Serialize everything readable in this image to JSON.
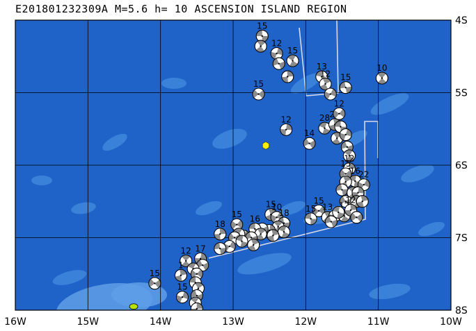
{
  "title": "E201801232309A M=5.6 h= 10 ASCENSION ISLAND REGION",
  "map": {
    "lon_range": [
      -16,
      -10
    ],
    "lat_range": [
      -8,
      -4
    ],
    "x_ticks": [
      "16W",
      "15W",
      "14W",
      "13W",
      "12W",
      "11W",
      "10W"
    ],
    "y_ticks": [
      "4S",
      "5S",
      "6S",
      "7S",
      "8S"
    ],
    "colors": {
      "ocean_deep": "#1f63c8",
      "ocean_shallow": "#3f86dc",
      "ridge": "#5f9de6",
      "grid": "#000000",
      "boundary": "#d8d8e8",
      "event_star": "#ffee00",
      "island": "#b8e000"
    },
    "event": {
      "lon": -12.55,
      "lat": -5.73
    },
    "island": {
      "lon": -14.37,
      "lat": -7.95
    },
    "mechanisms": [
      {
        "lon": -12.6,
        "lat": -4.22,
        "depth": "15"
      },
      {
        "lon": -12.62,
        "lat": -4.36,
        "depth": ""
      },
      {
        "lon": -12.4,
        "lat": -4.46,
        "depth": "12"
      },
      {
        "lon": -12.37,
        "lat": -4.6,
        "depth": ""
      },
      {
        "lon": -12.18,
        "lat": -4.56,
        "depth": "15"
      },
      {
        "lon": -12.25,
        "lat": -4.78,
        "depth": ""
      },
      {
        "lon": -12.65,
        "lat": -5.02,
        "depth": "15"
      },
      {
        "lon": -11.78,
        "lat": -4.78,
        "depth": "13"
      },
      {
        "lon": -11.73,
        "lat": -4.88,
        "depth": "12"
      },
      {
        "lon": -11.66,
        "lat": -5.02,
        "depth": ""
      },
      {
        "lon": -11.45,
        "lat": -4.93,
        "depth": "15"
      },
      {
        "lon": -10.95,
        "lat": -4.8,
        "depth": "10"
      },
      {
        "lon": -12.27,
        "lat": -5.51,
        "depth": "12"
      },
      {
        "lon": -11.95,
        "lat": -5.7,
        "depth": "14"
      },
      {
        "lon": -11.74,
        "lat": -5.49,
        "depth": "28"
      },
      {
        "lon": -11.6,
        "lat": -5.44,
        "depth": "21"
      },
      {
        "lon": -11.54,
        "lat": -5.29,
        "depth": "12"
      },
      {
        "lon": -11.52,
        "lat": -5.47,
        "depth": ""
      },
      {
        "lon": -11.57,
        "lat": -5.63,
        "depth": ""
      },
      {
        "lon": -11.45,
        "lat": -5.58,
        "depth": ""
      },
      {
        "lon": -11.43,
        "lat": -5.75,
        "depth": ""
      },
      {
        "lon": -11.4,
        "lat": -5.87,
        "depth": ""
      },
      {
        "lon": -11.4,
        "lat": -6.05,
        "depth": "12"
      },
      {
        "lon": -11.45,
        "lat": -6.12,
        "depth": "15"
      },
      {
        "lon": -11.32,
        "lat": -6.22,
        "depth": "16"
      },
      {
        "lon": -11.45,
        "lat": -6.23,
        "depth": ""
      },
      {
        "lon": -11.2,
        "lat": -6.27,
        "depth": "22"
      },
      {
        "lon": -11.5,
        "lat": -6.34,
        "depth": ""
      },
      {
        "lon": -11.35,
        "lat": -6.38,
        "depth": ""
      },
      {
        "lon": -11.28,
        "lat": -6.38,
        "depth": ""
      },
      {
        "lon": -11.45,
        "lat": -6.5,
        "depth": ""
      },
      {
        "lon": -11.3,
        "lat": -6.5,
        "depth": ""
      },
      {
        "lon": -11.22,
        "lat": -6.5,
        "depth": ""
      },
      {
        "lon": -11.82,
        "lat": -6.63,
        "depth": "15"
      },
      {
        "lon": -11.93,
        "lat": -6.74,
        "depth": "15"
      },
      {
        "lon": -11.7,
        "lat": -6.72,
        "depth": "13"
      },
      {
        "lon": -11.6,
        "lat": -6.7,
        "depth": ""
      },
      {
        "lon": -11.65,
        "lat": -6.78,
        "depth": ""
      },
      {
        "lon": -11.47,
        "lat": -6.7,
        "depth": "12"
      },
      {
        "lon": -11.38,
        "lat": -6.62,
        "depth": "12"
      },
      {
        "lon": -11.3,
        "lat": -6.72,
        "depth": ""
      },
      {
        "lon": -11.55,
        "lat": -6.65,
        "depth": ""
      },
      {
        "lon": -12.48,
        "lat": -6.68,
        "depth": "15"
      },
      {
        "lon": -12.4,
        "lat": -6.72,
        "depth": "10"
      },
      {
        "lon": -12.3,
        "lat": -6.8,
        "depth": "18"
      },
      {
        "lon": -12.38,
        "lat": -6.85,
        "depth": ""
      },
      {
        "lon": -12.5,
        "lat": -6.9,
        "depth": ""
      },
      {
        "lon": -12.6,
        "lat": -6.88,
        "depth": ""
      },
      {
        "lon": -12.3,
        "lat": -6.92,
        "depth": ""
      },
      {
        "lon": -12.45,
        "lat": -6.97,
        "depth": ""
      },
      {
        "lon": -12.95,
        "lat": -6.82,
        "depth": "15"
      },
      {
        "lon": -12.7,
        "lat": -6.88,
        "depth": "16"
      },
      {
        "lon": -12.62,
        "lat": -6.95,
        "depth": ""
      },
      {
        "lon": -12.85,
        "lat": -6.98,
        "depth": ""
      },
      {
        "lon": -12.75,
        "lat": -7.0,
        "depth": ""
      },
      {
        "lon": -12.92,
        "lat": -6.95,
        "depth": ""
      },
      {
        "lon": -13.18,
        "lat": -6.95,
        "depth": "18"
      },
      {
        "lon": -12.98,
        "lat": -7.0,
        "depth": ""
      },
      {
        "lon": -12.88,
        "lat": -7.05,
        "depth": ""
      },
      {
        "lon": -12.72,
        "lat": -7.1,
        "depth": ""
      },
      {
        "lon": -13.05,
        "lat": -7.12,
        "depth": ""
      },
      {
        "lon": -13.18,
        "lat": -7.15,
        "depth": ""
      },
      {
        "lon": -13.65,
        "lat": -7.32,
        "depth": "12"
      },
      {
        "lon": -13.45,
        "lat": -7.29,
        "depth": "17"
      },
      {
        "lon": -13.42,
        "lat": -7.38,
        "depth": ""
      },
      {
        "lon": -13.55,
        "lat": -7.43,
        "depth": ""
      },
      {
        "lon": -13.72,
        "lat": -7.52,
        "depth": "1"
      },
      {
        "lon": -13.5,
        "lat": -7.5,
        "depth": ""
      },
      {
        "lon": -13.52,
        "lat": -7.62,
        "depth": ""
      },
      {
        "lon": -13.48,
        "lat": -7.7,
        "depth": ""
      },
      {
        "lon": -13.7,
        "lat": -7.82,
        "depth": "15"
      },
      {
        "lon": -13.5,
        "lat": -7.8,
        "depth": ""
      },
      {
        "lon": -13.52,
        "lat": -7.9,
        "depth": ""
      },
      {
        "lon": -13.5,
        "lat": -7.98,
        "depth": ""
      },
      {
        "lon": -14.08,
        "lat": -7.63,
        "depth": "15"
      }
    ]
  }
}
